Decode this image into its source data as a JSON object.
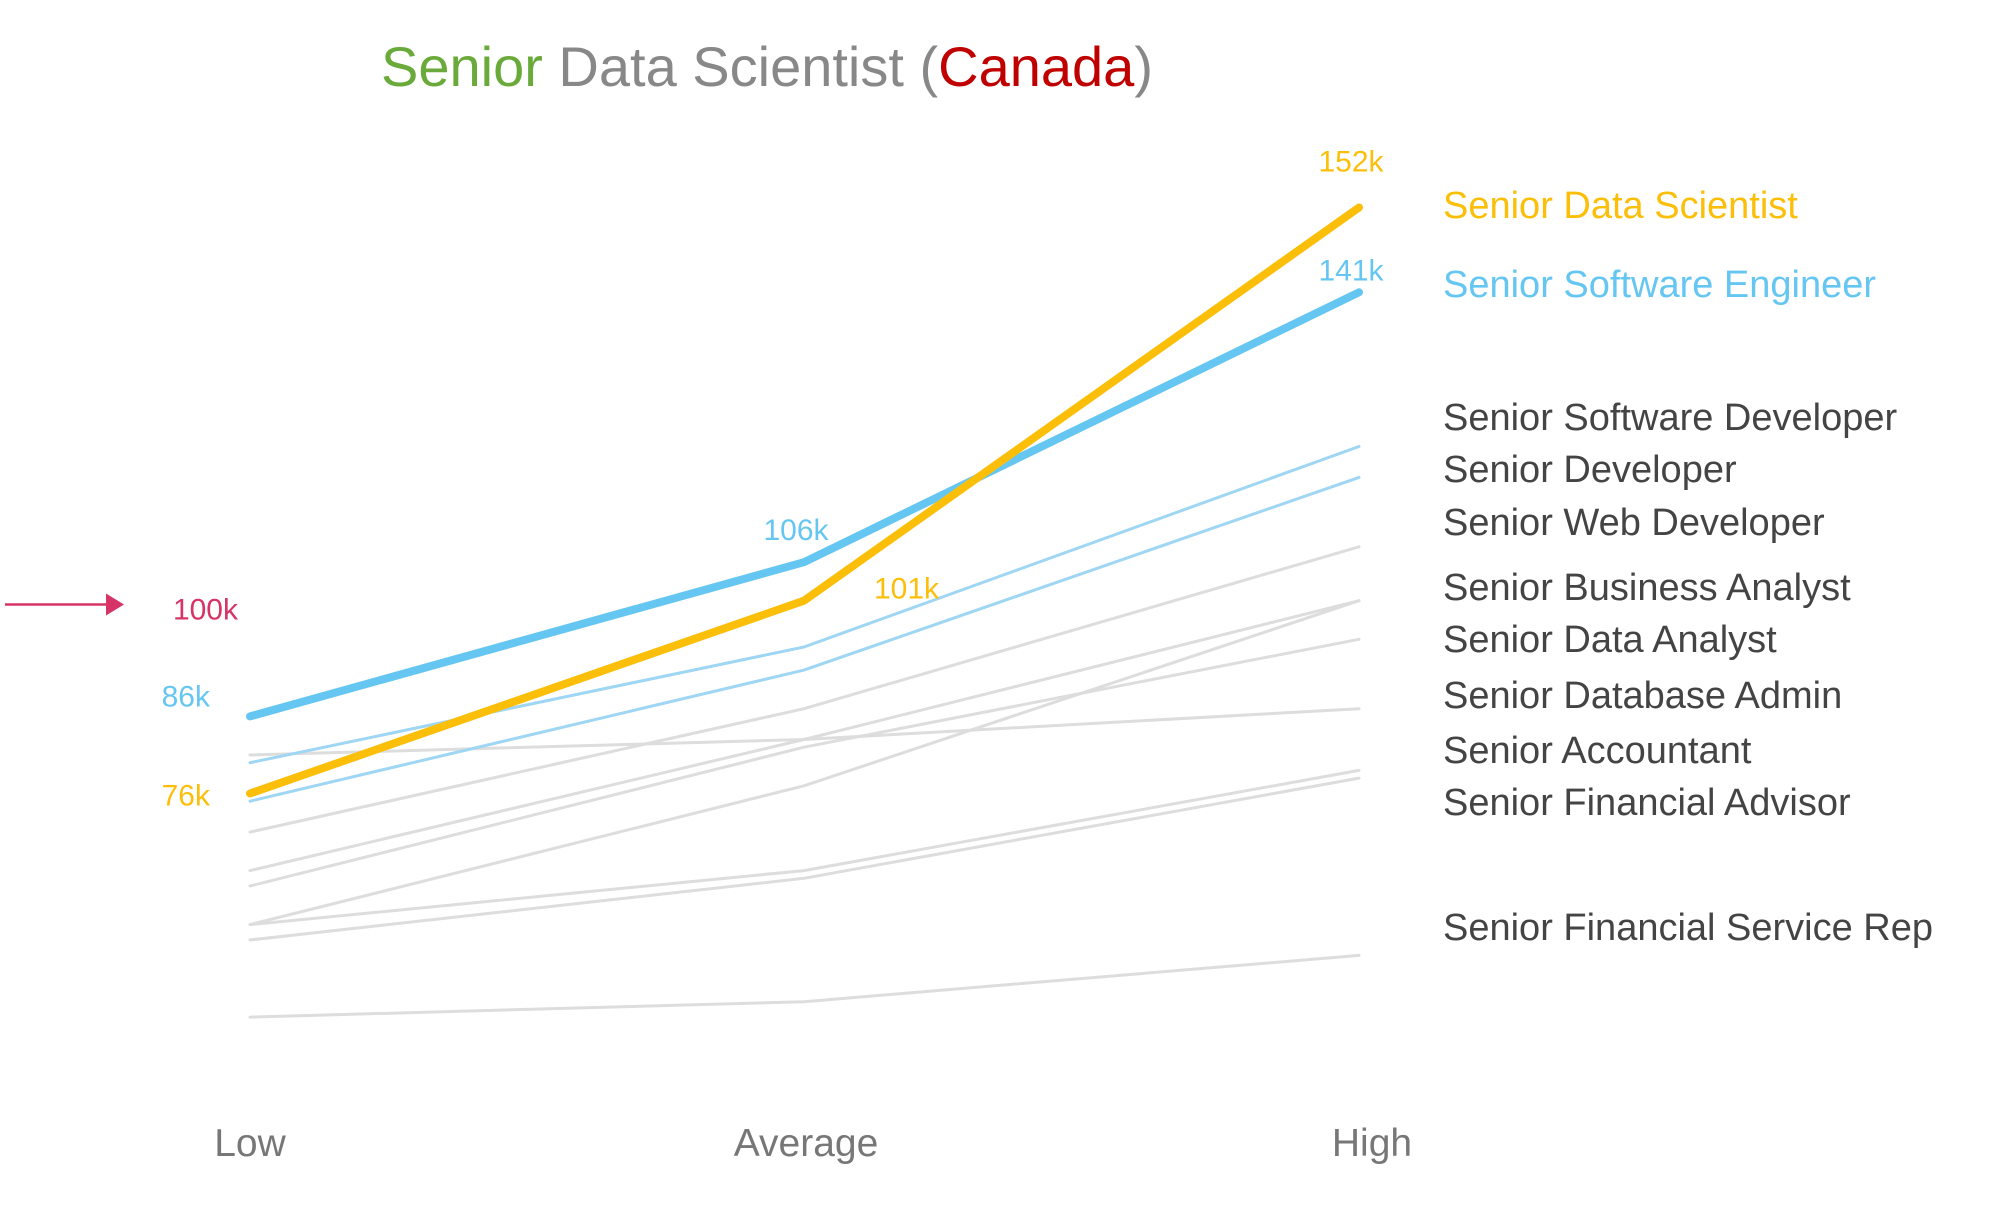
{
  "chart_data": {
    "type": "line",
    "title": {
      "part1": "Senior",
      "part2": " Data Scientist (",
      "part3": "Canada",
      "part4": ")"
    },
    "title_colors": {
      "part1": "#6aaa3a",
      "part2": "#888888",
      "part3": "#c00000",
      "part4": "#888888"
    },
    "categories": [
      "Low",
      "Average",
      "High"
    ],
    "unit": "k",
    "reference": {
      "value": 100,
      "label": "100k",
      "color": "#d63366"
    },
    "series": [
      {
        "name": "Senior Data Scientist",
        "values": [
          76,
          101,
          152
        ],
        "color": "#fbbf0a",
        "highlight": true,
        "labels": [
          "76k",
          "101k",
          "152k"
        ]
      },
      {
        "name": "Senior Software Engineer",
        "values": [
          86,
          106,
          141
        ],
        "color": "#66c6f2",
        "highlight": true,
        "labels": [
          "86k",
          "106k",
          "141k"
        ]
      },
      {
        "name": "Senior Software Developer",
        "values": [
          80,
          95,
          121
        ],
        "color": "#9ed6f3"
      },
      {
        "name": "Senior Developer",
        "values": [
          75,
          92,
          117
        ],
        "color": "#9ed6f3"
      },
      {
        "name": "Senior Web Developer",
        "values": [
          71,
          87,
          108
        ],
        "color": "#dddddd"
      },
      {
        "name": "Senior Business Analyst",
        "values": [
          66,
          83,
          101
        ],
        "color": "#dddddd"
      },
      {
        "name": "Senior Data Analyst",
        "values": [
          59,
          77,
          101
        ],
        "color": "#dddddd"
      },
      {
        "name": "Senior Database Admin",
        "values": [
          64,
          82,
          96
        ],
        "color": "#dddddd"
      },
      {
        "name": "Senior Accountant",
        "values": [
          81,
          83,
          87
        ],
        "color": "#dddddd"
      },
      {
        "name": "Senior Financial Advisor",
        "values": [
          59,
          66,
          79
        ],
        "color": "#dddddd"
      },
      {
        "name": "",
        "values": [
          57,
          65,
          78
        ],
        "color": "#dddddd"
      },
      {
        "name": "Senior Financial Service Rep",
        "values": [
          47,
          49,
          55
        ],
        "color": "#dddddd"
      }
    ],
    "legend_placement": "right",
    "grid": false
  }
}
